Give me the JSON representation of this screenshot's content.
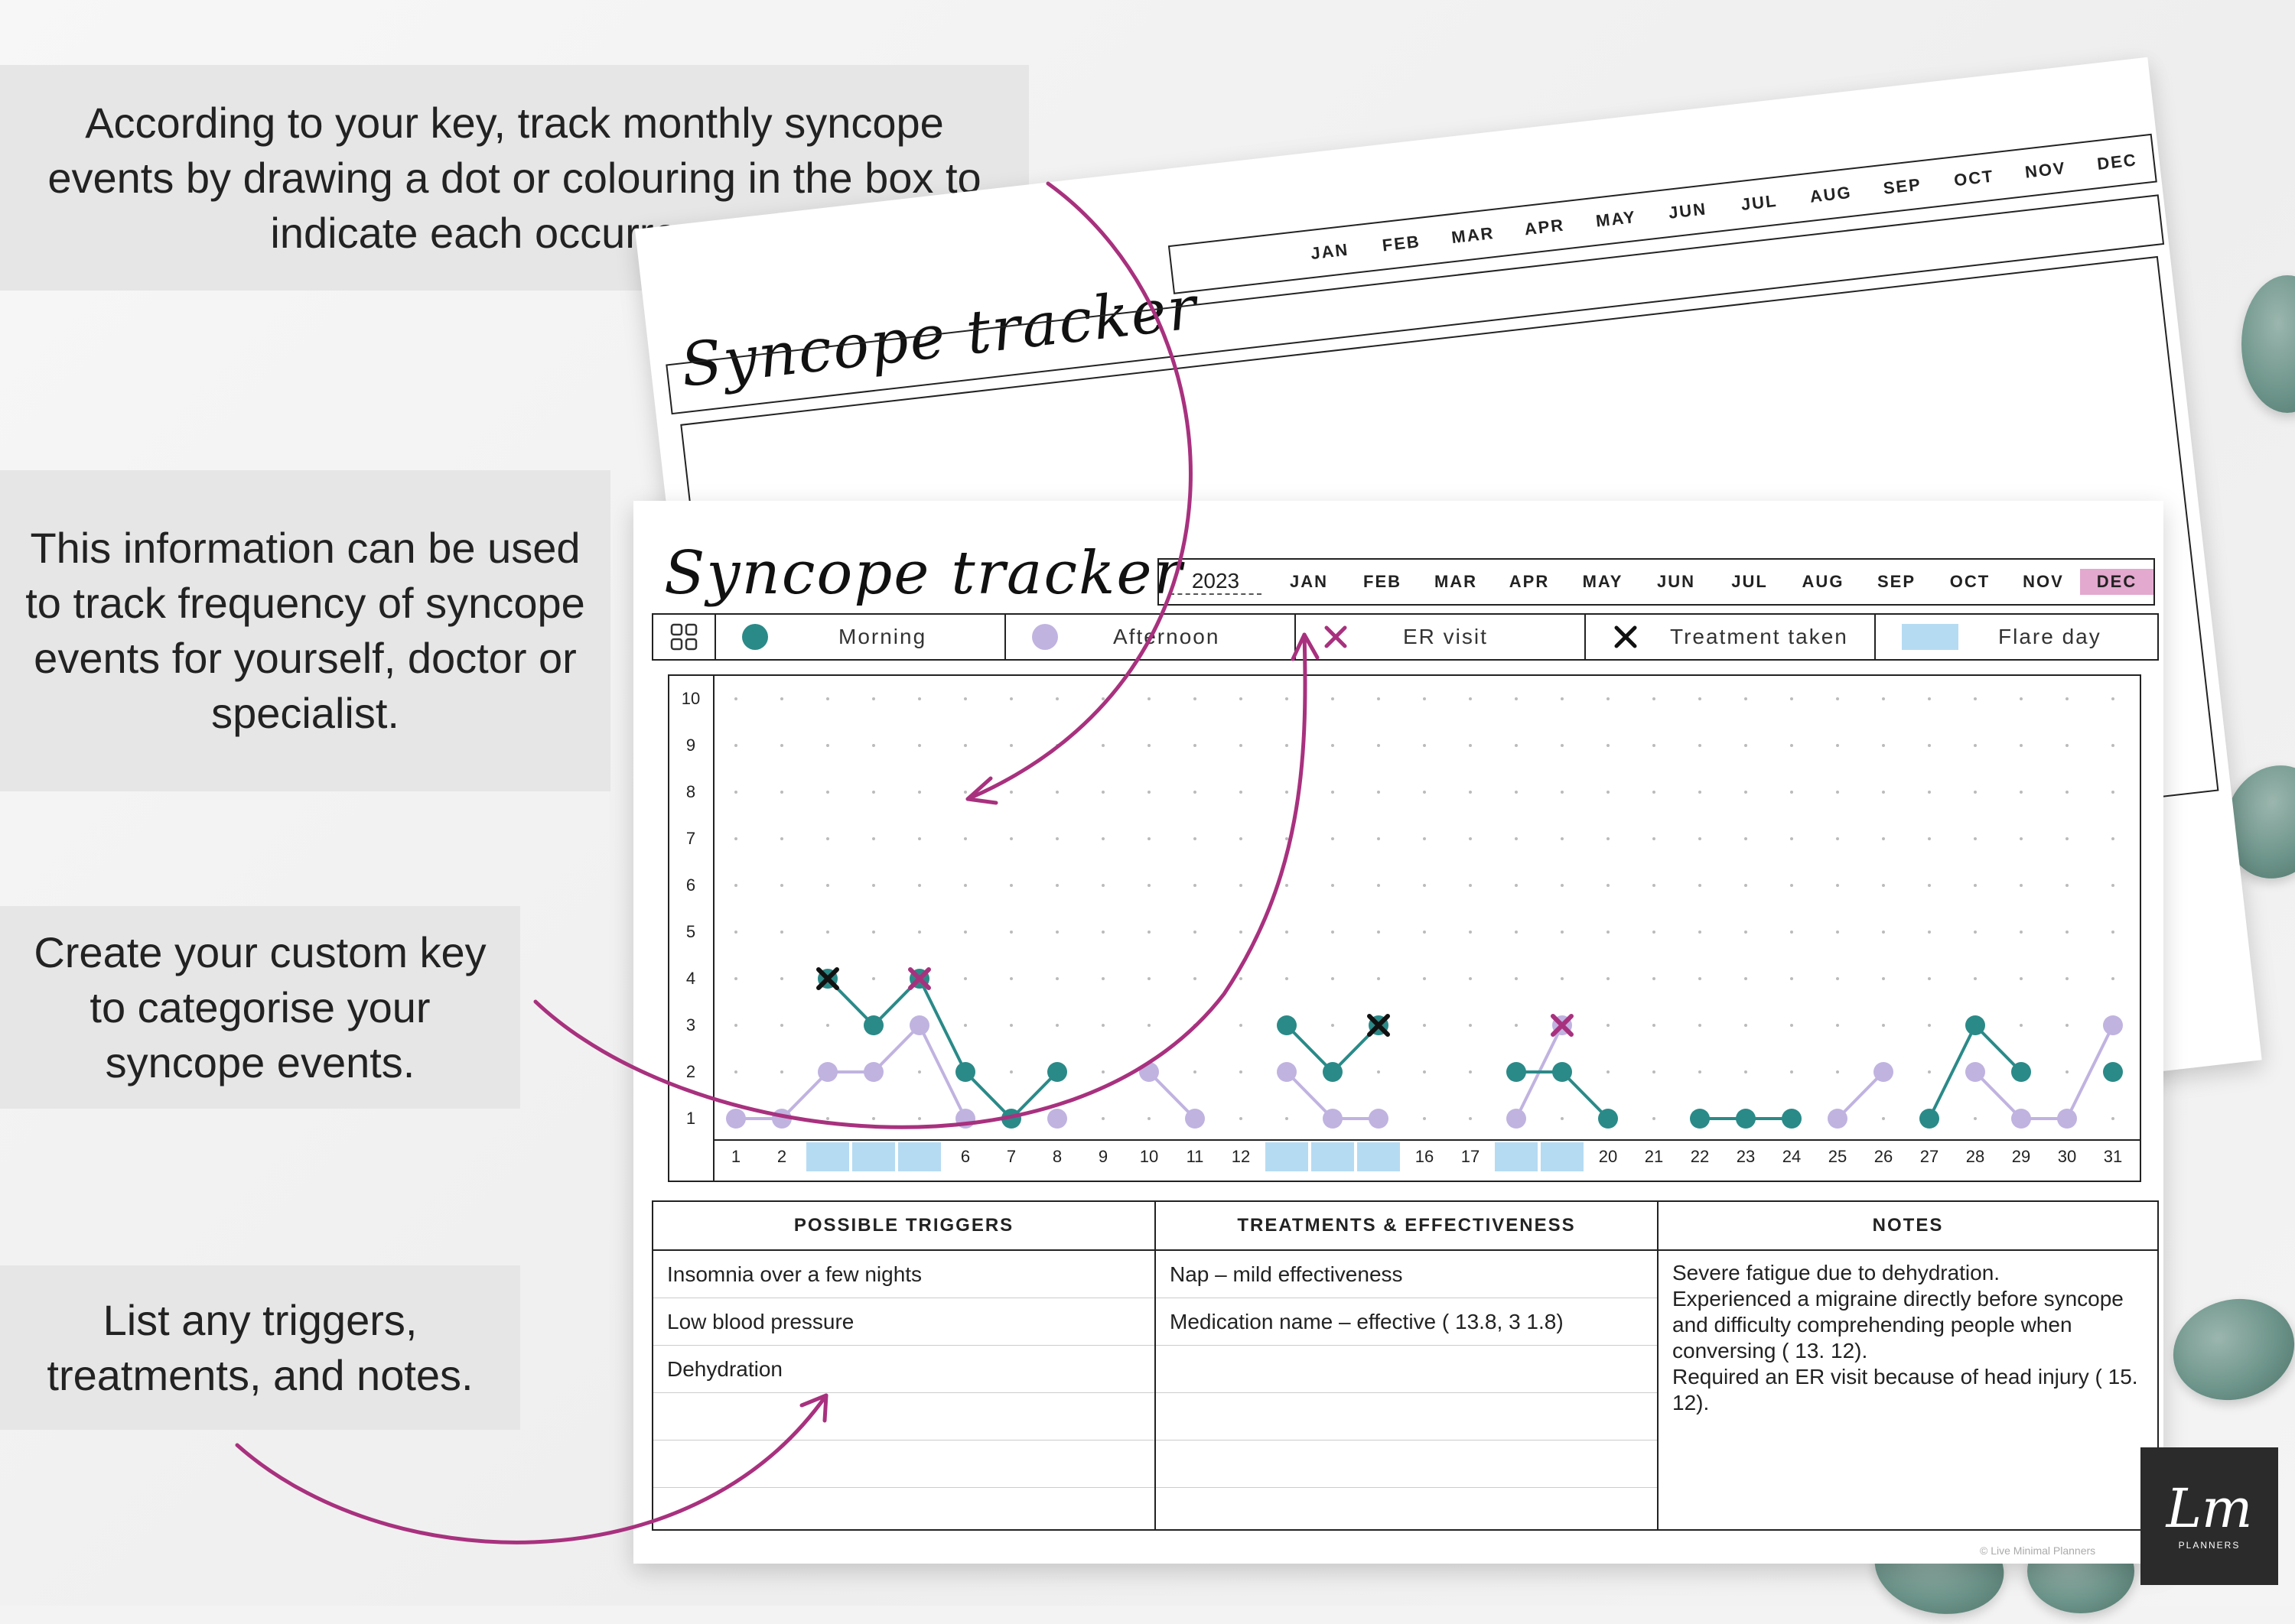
{
  "callouts": [
    "According to your key, track monthly syncope events by drawing a dot or colouring in the box to indicate each occurrence.",
    "This information can be used to track frequency of syncope events for yourself, doctor or specialist.",
    "Create your custom key to categorise your syncope events.",
    "List any triggers, treatments, and notes."
  ],
  "tracker": {
    "title": "Syncope tracker",
    "year": "2023",
    "months": [
      "JAN",
      "FEB",
      "MAR",
      "APR",
      "MAY",
      "JUN",
      "JUL",
      "AUG",
      "SEP",
      "OCT",
      "NOV",
      "DEC"
    ],
    "selected_month": "DEC",
    "legend": {
      "morning": "Morning",
      "afternoon": "Afternoon",
      "er": "ER visit",
      "treatment": "Treatment taken",
      "flare": "Flare day"
    },
    "colors": {
      "morning": "#2a8a88",
      "afternoon": "#c0b3e0",
      "er": "#a8317e",
      "treatment": "#111111",
      "flare": "#b5dbf2",
      "accent": "#a8317e"
    },
    "y_ticks": [
      1,
      2,
      3,
      4,
      5,
      6,
      7,
      8,
      9,
      10
    ],
    "days": [
      1,
      2,
      3,
      4,
      5,
      6,
      7,
      8,
      9,
      10,
      11,
      12,
      13,
      14,
      15,
      16,
      17,
      18,
      19,
      20,
      21,
      22,
      23,
      24,
      25,
      26,
      27,
      28,
      29,
      30,
      31
    ],
    "flare_days": [
      3,
      4,
      5,
      13,
      14,
      15,
      18,
      19
    ],
    "morning_segments": [
      [
        [
          3,
          4
        ],
        [
          4,
          3
        ],
        [
          5,
          4
        ],
        [
          6,
          2
        ],
        [
          7,
          1
        ],
        [
          8,
          2
        ]
      ],
      [
        [
          13,
          3
        ],
        [
          14,
          2
        ],
        [
          15,
          3
        ]
      ],
      [
        [
          18,
          2
        ],
        [
          19,
          2
        ],
        [
          20,
          1
        ]
      ],
      [
        [
          22,
          1
        ],
        [
          23,
          1
        ],
        [
          24,
          1
        ]
      ],
      [
        [
          27,
          1
        ],
        [
          28,
          3
        ],
        [
          29,
          2
        ]
      ],
      [
        [
          31,
          2
        ]
      ]
    ],
    "afternoon_segments": [
      [
        [
          1,
          1
        ],
        [
          2,
          1
        ],
        [
          3,
          2
        ],
        [
          4,
          2
        ],
        [
          5,
          3
        ],
        [
          6,
          1
        ]
      ],
      [
        [
          8,
          1
        ]
      ],
      [
        [
          10,
          2
        ],
        [
          11,
          1
        ]
      ],
      [
        [
          13,
          2
        ],
        [
          14,
          1
        ],
        [
          15,
          1
        ]
      ],
      [
        [
          18,
          1
        ],
        [
          19,
          3
        ]
      ],
      [
        [
          25,
          1
        ],
        [
          26,
          2
        ]
      ],
      [
        [
          28,
          2
        ],
        [
          29,
          1
        ],
        [
          30,
          1
        ],
        [
          31,
          3
        ]
      ]
    ],
    "er_marks": [
      [
        5,
        4
      ],
      [
        19,
        3
      ]
    ],
    "treatment_marks": [
      [
        3,
        4
      ],
      [
        15,
        3
      ]
    ],
    "triggers_header": "POSSIBLE TRIGGERS",
    "treatments_header": "TREATMENTS & EFFECTIVENESS",
    "notes_header": "NOTES",
    "triggers": [
      "Insomnia over a few nights",
      "Low blood pressure",
      "Dehydration",
      "",
      "",
      ""
    ],
    "treatments": [
      "Nap – mild effectiveness",
      "Medication name – effective ( 13.8, 3 1.8)",
      "",
      "",
      "",
      ""
    ],
    "notes": "Severe fatigue due to dehydration.\nExperienced a migraine directly before syncope and difficulty comprehending people when conversing ( 13. 12).\nRequired an ER visit because of head injury ( 15. 12).",
    "footer": "© Live Minimal Planners"
  },
  "logo": {
    "mark": "Lm",
    "text": "PLANNERS"
  }
}
